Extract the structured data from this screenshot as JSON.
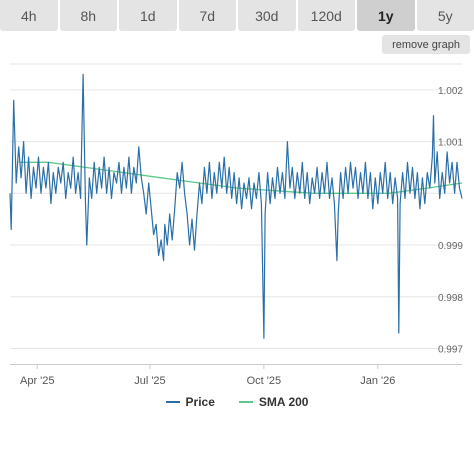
{
  "ranges": [
    "4h",
    "8h",
    "1d",
    "7d",
    "30d",
    "120d",
    "1y",
    "5y"
  ],
  "active_range": "1y",
  "remove_graph_label": "remove graph",
  "colors": {
    "price": "#2b6fa8",
    "sma": "#5cc98a",
    "grid": "#e6e6e6",
    "axis_text": "#666666"
  },
  "chart_data": {
    "type": "line",
    "ylim": [
      0.9967,
      1.0025
    ],
    "y_ticks": [
      0.997,
      0.998,
      0.999,
      1.0,
      1.001,
      1.002
    ],
    "y_tick_labels": [
      "0.997",
      "0.998",
      "0.999",
      "",
      "1.001",
      "1.002"
    ],
    "x_ticks": [
      "Apr '25",
      "Jul '25",
      "Oct '25",
      "Jan '26"
    ],
    "x_domain": [
      "2025-03-10",
      "2026-03-10"
    ],
    "x_tick_dates": [
      "2025-04-01",
      "2025-07-01",
      "2025-10-01",
      "2026-01-01"
    ],
    "series": [
      {
        "name": "Price",
        "values": [
          [
            "2025-03-10",
            1.0
          ],
          [
            "2025-03-11",
            0.9993
          ],
          [
            "2025-03-13",
            1.0018
          ],
          [
            "2025-03-15",
            1.0002
          ],
          [
            "2025-03-17",
            1.0009
          ],
          [
            "2025-03-19",
            1.0003
          ],
          [
            "2025-03-21",
            1.001
          ],
          [
            "2025-03-23",
            1.0
          ],
          [
            "2025-03-25",
            1.0007
          ],
          [
            "2025-03-27",
            0.9999
          ],
          [
            "2025-03-29",
            1.0005
          ],
          [
            "2025-03-31",
            1.0001
          ],
          [
            "2025-04-02",
            1.0007
          ],
          [
            "2025-04-04",
            1.0
          ],
          [
            "2025-04-06",
            1.0005
          ],
          [
            "2025-04-08",
            1.0001
          ],
          [
            "2025-04-10",
            1.0006
          ],
          [
            "2025-04-12",
            0.9998
          ],
          [
            "2025-04-14",
            1.0004
          ],
          [
            "2025-04-16",
            1.0
          ],
          [
            "2025-04-18",
            1.0005
          ],
          [
            "2025-04-20",
            1.0002
          ],
          [
            "2025-04-22",
            1.0006
          ],
          [
            "2025-04-24",
            0.9999
          ],
          [
            "2025-04-26",
            1.0004
          ],
          [
            "2025-04-28",
            1.0001
          ],
          [
            "2025-04-30",
            1.0007
          ],
          [
            "2025-05-02",
            1.0
          ],
          [
            "2025-05-04",
            1.0004
          ],
          [
            "2025-05-06",
            0.9999
          ],
          [
            "2025-05-08",
            1.0023
          ],
          [
            "2025-05-09",
            1.001
          ],
          [
            "2025-05-10",
            0.9998
          ],
          [
            "2025-05-11",
            0.999
          ],
          [
            "2025-05-13",
            1.0003
          ],
          [
            "2025-05-15",
            0.9999
          ],
          [
            "2025-05-17",
            1.0006
          ],
          [
            "2025-05-19",
            1.0
          ],
          [
            "2025-05-21",
            1.0005
          ],
          [
            "2025-05-23",
            1.0001
          ],
          [
            "2025-05-25",
            1.0007
          ],
          [
            "2025-05-27",
            1.0
          ],
          [
            "2025-05-29",
            1.0005
          ],
          [
            "2025-05-31",
            0.9999
          ],
          [
            "2025-06-02",
            1.0004
          ],
          [
            "2025-06-04",
            1.0002
          ],
          [
            "2025-06-06",
            1.0006
          ],
          [
            "2025-06-08",
            1.0
          ],
          [
            "2025-06-10",
            1.0005
          ],
          [
            "2025-06-12",
            1.0001
          ],
          [
            "2025-06-14",
            1.0007
          ],
          [
            "2025-06-16",
            1.0
          ],
          [
            "2025-06-18",
            1.0005
          ],
          [
            "2025-06-20",
            1.0002
          ],
          [
            "2025-06-22",
            1.0009
          ],
          [
            "2025-06-24",
            1.0003
          ],
          [
            "2025-06-26",
            1.0
          ],
          [
            "2025-06-28",
            0.9996
          ],
          [
            "2025-06-30",
            1.0002
          ],
          [
            "2025-07-02",
            0.9997
          ],
          [
            "2025-07-04",
            0.9992
          ],
          [
            "2025-07-06",
            0.9994
          ],
          [
            "2025-07-08",
            0.9988
          ],
          [
            "2025-07-10",
            0.9991
          ],
          [
            "2025-07-12",
            0.9987
          ],
          [
            "2025-07-13",
            0.9994
          ],
          [
            "2025-07-15",
            0.999
          ],
          [
            "2025-07-17",
            0.9996
          ],
          [
            "2025-07-19",
            0.9991
          ],
          [
            "2025-07-21",
            0.9997
          ],
          [
            "2025-07-23",
            1.0004
          ],
          [
            "2025-07-25",
            1.0001
          ],
          [
            "2025-07-27",
            1.0006
          ],
          [
            "2025-07-29",
            1.0
          ],
          [
            "2025-07-31",
            0.9996
          ],
          [
            "2025-08-02",
            0.999
          ],
          [
            "2025-08-04",
            0.9995
          ],
          [
            "2025-08-06",
            0.9989
          ],
          [
            "2025-08-08",
            0.9996
          ],
          [
            "2025-08-10",
            1.0002
          ],
          [
            "2025-08-12",
            0.9998
          ],
          [
            "2025-08-14",
            1.0005
          ],
          [
            "2025-08-16",
            1.0
          ],
          [
            "2025-08-18",
            1.0006
          ],
          [
            "2025-08-20",
            0.9999
          ],
          [
            "2025-08-22",
            1.0004
          ],
          [
            "2025-08-24",
            1.0
          ],
          [
            "2025-08-26",
            1.0006
          ],
          [
            "2025-08-28",
            1.0001
          ],
          [
            "2025-08-30",
            1.0007
          ],
          [
            "2025-09-01",
            1.0
          ],
          [
            "2025-09-03",
            1.0005
          ],
          [
            "2025-09-05",
            0.9999
          ],
          [
            "2025-09-07",
            1.0004
          ],
          [
            "2025-09-09",
            0.9998
          ],
          [
            "2025-09-11",
            1.0003
          ],
          [
            "2025-09-13",
            0.9997
          ],
          [
            "2025-09-15",
            1.0002
          ],
          [
            "2025-09-17",
            0.9999
          ],
          [
            "2025-09-19",
            1.0003
          ],
          [
            "2025-09-21",
            0.9997
          ],
          [
            "2025-09-23",
            1.0002
          ],
          [
            "2025-09-25",
            0.9999
          ],
          [
            "2025-09-27",
            1.0004
          ],
          [
            "2025-09-29",
            0.9998
          ],
          [
            "2025-10-01",
            0.9972
          ],
          [
            "2025-10-02",
            0.9996
          ],
          [
            "2025-10-04",
            1.0004
          ],
          [
            "2025-10-06",
            0.9998
          ],
          [
            "2025-10-08",
            1.0003
          ],
          [
            "2025-10-10",
            0.9999
          ],
          [
            "2025-10-12",
            1.0005
          ],
          [
            "2025-10-14",
            1.0
          ],
          [
            "2025-10-16",
            1.0004
          ],
          [
            "2025-10-18",
            0.9999
          ],
          [
            "2025-10-20",
            1.001
          ],
          [
            "2025-10-22",
            1.0001
          ],
          [
            "2025-10-24",
            1.0005
          ],
          [
            "2025-10-26",
            0.9999
          ],
          [
            "2025-10-28",
            1.0004
          ],
          [
            "2025-10-30",
            1.0
          ],
          [
            "2025-11-01",
            1.0006
          ],
          [
            "2025-11-03",
            0.9999
          ],
          [
            "2025-11-05",
            1.0004
          ],
          [
            "2025-11-07",
            0.9998
          ],
          [
            "2025-11-09",
            1.0003
          ],
          [
            "2025-11-11",
            1.0
          ],
          [
            "2025-11-13",
            1.0005
          ],
          [
            "2025-11-15",
            0.9999
          ],
          [
            "2025-11-17",
            1.0004
          ],
          [
            "2025-11-19",
            1.0
          ],
          [
            "2025-11-21",
            1.0006
          ],
          [
            "2025-11-23",
            0.9999
          ],
          [
            "2025-11-25",
            1.0003
          ],
          [
            "2025-11-27",
            0.9998
          ],
          [
            "2025-11-29",
            0.9987
          ],
          [
            "2025-11-30",
            0.9996
          ],
          [
            "2025-12-02",
            1.0004
          ],
          [
            "2025-12-04",
            0.9999
          ],
          [
            "2025-12-06",
            1.0005
          ],
          [
            "2025-12-08",
            1.0
          ],
          [
            "2025-12-10",
            1.0006
          ],
          [
            "2025-12-12",
            1.0001
          ],
          [
            "2025-12-14",
            1.0005
          ],
          [
            "2025-12-16",
            0.9999
          ],
          [
            "2025-12-18",
            1.0004
          ],
          [
            "2025-12-20",
            1.0
          ],
          [
            "2025-12-22",
            1.0006
          ],
          [
            "2025-12-24",
            0.9999
          ],
          [
            "2025-12-26",
            1.0004
          ],
          [
            "2025-12-28",
            0.9997
          ],
          [
            "2025-12-30",
            1.0003
          ],
          [
            "2026-01-01",
            0.9998
          ],
          [
            "2026-01-03",
            1.0004
          ],
          [
            "2026-01-05",
            1.0
          ],
          [
            "2026-01-07",
            1.0006
          ],
          [
            "2026-01-09",
            0.9999
          ],
          [
            "2026-01-11",
            1.0004
          ],
          [
            "2026-01-13",
            0.9998
          ],
          [
            "2026-01-15",
            1.0003
          ],
          [
            "2026-01-17",
            0.9999
          ],
          [
            "2026-01-18",
            0.9973
          ],
          [
            "2026-01-19",
            0.9998
          ],
          [
            "2026-01-21",
            1.0004
          ],
          [
            "2026-01-23",
            0.9999
          ],
          [
            "2026-01-25",
            1.0006
          ],
          [
            "2026-01-27",
            1.0
          ],
          [
            "2026-01-29",
            1.0005
          ],
          [
            "2026-01-31",
            0.9999
          ],
          [
            "2026-02-02",
            1.0004
          ],
          [
            "2026-02-04",
            0.9997
          ],
          [
            "2026-02-06",
            1.0003
          ],
          [
            "2026-02-08",
            0.9998
          ],
          [
            "2026-02-10",
            1.0004
          ],
          [
            "2026-02-12",
            1.0001
          ],
          [
            "2026-02-14",
            1.0007
          ],
          [
            "2026-02-15",
            1.0015
          ],
          [
            "2026-02-16",
            1.0002
          ],
          [
            "2026-02-18",
            1.0008
          ],
          [
            "2026-02-20",
            0.9999
          ],
          [
            "2026-02-22",
            1.0004
          ],
          [
            "2026-02-24",
            1.0
          ],
          [
            "2026-02-26",
            1.0008
          ],
          [
            "2026-02-28",
            1.0002
          ],
          [
            "2026-03-02",
            1.0006
          ],
          [
            "2026-03-04",
            1.0
          ],
          [
            "2026-03-06",
            1.0006
          ],
          [
            "2026-03-08",
            1.0001
          ],
          [
            "2026-03-10",
            0.9999
          ]
        ]
      },
      {
        "name": "SMA 200",
        "values": [
          [
            "2025-03-17",
            1.0006
          ],
          [
            "2025-04-10",
            1.0006
          ],
          [
            "2025-05-10",
            1.0005
          ],
          [
            "2025-06-10",
            1.0004
          ],
          [
            "2025-07-10",
            1.0003
          ],
          [
            "2025-08-10",
            1.0002
          ],
          [
            "2025-09-10",
            1.0001
          ],
          [
            "2025-10-10",
            1.00005
          ],
          [
            "2025-11-10",
            1.0
          ],
          [
            "2025-12-10",
            1.0
          ],
          [
            "2026-01-10",
            1.0
          ],
          [
            "2026-02-10",
            1.0001
          ],
          [
            "2026-03-10",
            1.0002
          ]
        ]
      }
    ]
  }
}
